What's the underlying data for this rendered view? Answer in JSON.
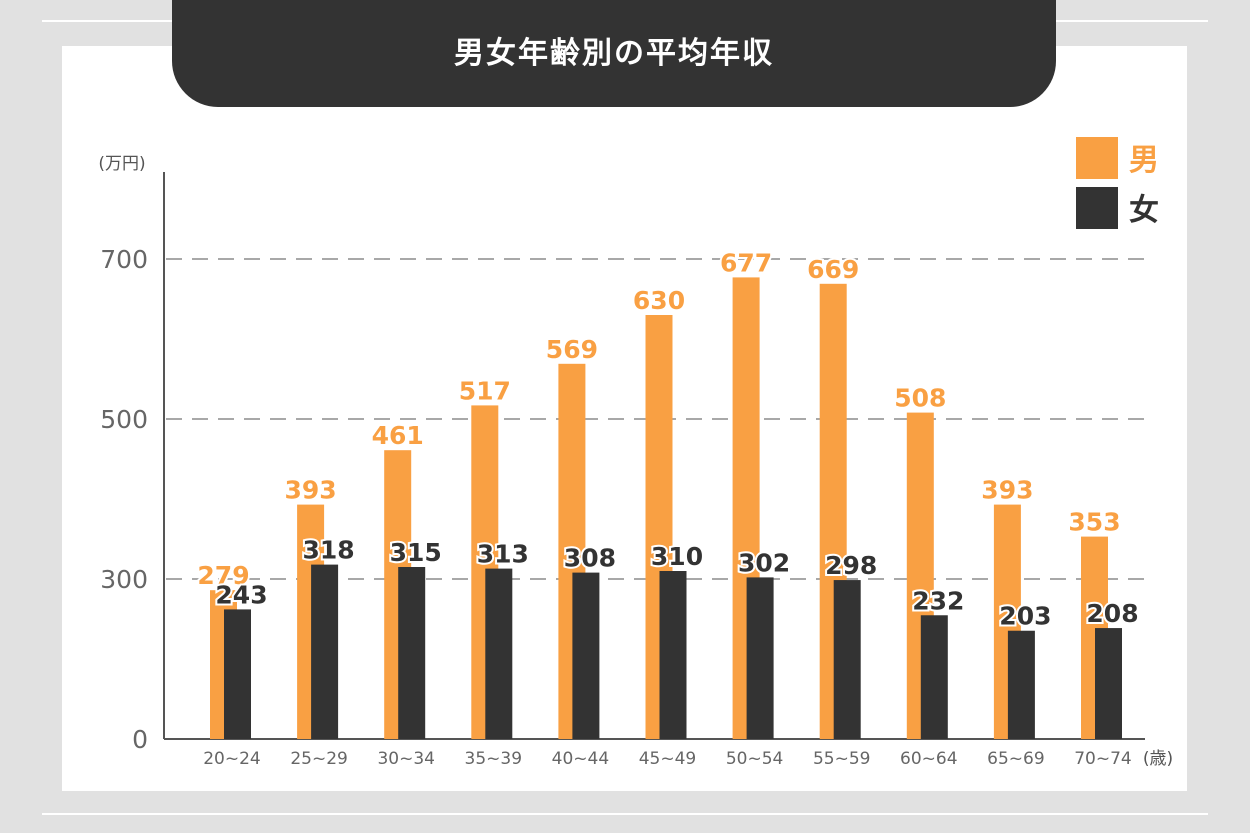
{
  "chart_data": {
    "type": "bar",
    "title": "男女年齢別の平均年収",
    "ylabel": "(万円)",
    "xlabel": "(歳)",
    "ylim": [
      0,
      800
    ],
    "yticks": [
      0,
      300,
      500,
      700
    ],
    "categories": [
      "20~24",
      "25~29",
      "30~34",
      "35~39",
      "40~44",
      "45~49",
      "50~54",
      "55~59",
      "60~64",
      "65~69",
      "70~74"
    ],
    "series": [
      {
        "name": "男",
        "color": "#f9a043",
        "values": [
          279,
          393,
          461,
          517,
          569,
          630,
          677,
          669,
          508,
          393,
          353
        ]
      },
      {
        "name": "女",
        "color": "#333333",
        "values": [
          243,
          318,
          315,
          313,
          308,
          310,
          302,
          298,
          232,
          203,
          208
        ]
      }
    ],
    "legend": "top-right",
    "grid": "dashed horizontal at ticks 300, 500, 700"
  }
}
